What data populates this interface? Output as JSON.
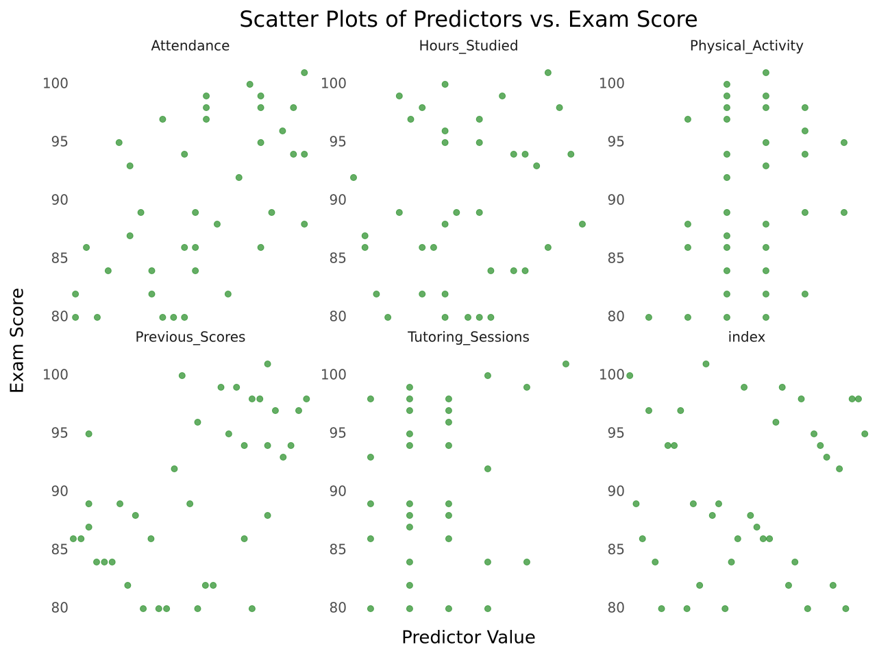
{
  "title": "Scatter Plots of Predictors vs. Exam Score",
  "x_label": "Predictor Value",
  "y_label": "Exam Score",
  "chart_data": [
    {
      "type": "scatter",
      "title": "Attendance",
      "color": "#228b22",
      "x": [
        0,
        0,
        1,
        2,
        3,
        4,
        5,
        5,
        6,
        7,
        7,
        8,
        8,
        9,
        10,
        10,
        10,
        11,
        11,
        11,
        12,
        12,
        12,
        13,
        14,
        15,
        16,
        17,
        17,
        17,
        17,
        18,
        19,
        20,
        20,
        21,
        21,
        21
      ],
      "y": [
        82,
        80,
        86,
        80,
        84,
        95,
        93,
        87,
        89,
        84,
        82,
        97,
        80,
        80,
        94,
        86,
        80,
        89,
        86,
        84,
        99,
        98,
        97,
        88,
        82,
        92,
        100,
        99,
        98,
        95,
        86,
        89,
        96,
        98,
        94,
        101,
        94,
        88
      ],
      "xlim": [
        -0.45,
        21.55
      ],
      "ylim": [
        79,
        102
      ],
      "yticks": [
        80,
        85,
        90,
        95,
        100
      ]
    },
    {
      "type": "scatter",
      "title": "Hours_Studied",
      "color": "#228b22",
      "x": [
        0,
        1,
        1,
        2,
        3,
        4,
        4,
        5,
        6,
        6,
        6,
        7,
        8,
        8,
        8,
        8,
        8,
        8,
        9,
        10,
        11,
        11,
        11,
        11,
        12,
        12,
        13,
        14,
        14,
        15,
        15,
        16,
        17,
        17,
        18,
        19,
        20
      ],
      "y": [
        92,
        87,
        86,
        82,
        80,
        99,
        89,
        97,
        98,
        86,
        82,
        86,
        100,
        96,
        95,
        88,
        82,
        80,
        89,
        80,
        97,
        95,
        89,
        80,
        84,
        80,
        99,
        94,
        84,
        94,
        84,
        93,
        101,
        86,
        98,
        94,
        88
      ],
      "xlim": [
        -0.42,
        20.54
      ],
      "ylim": [
        79,
        102
      ],
      "yticks": [
        80,
        85,
        90,
        95,
        100
      ]
    },
    {
      "type": "scatter",
      "title": "Physical_Activity",
      "color": "#228b22",
      "x": [
        0,
        1,
        1,
        1,
        1,
        2,
        2,
        2,
        2,
        2,
        2,
        2,
        2,
        2,
        2,
        2,
        2,
        3,
        3,
        3,
        3,
        3,
        3,
        3,
        3,
        3,
        3,
        4,
        4,
        4,
        4,
        4,
        5,
        5
      ],
      "y": [
        80,
        97,
        88,
        86,
        80,
        100,
        99,
        98,
        97,
        94,
        92,
        89,
        87,
        86,
        84,
        82,
        80,
        101,
        99,
        98,
        95,
        93,
        88,
        86,
        84,
        82,
        80,
        98,
        96,
        94,
        89,
        82,
        95,
        89
      ],
      "xlim": [
        -0.56,
        5.58
      ],
      "ylim": [
        79,
        102
      ],
      "yticks": [
        80,
        85,
        90,
        95,
        100
      ]
    },
    {
      "type": "scatter",
      "title": "Previous_Scores",
      "color": "#228b22",
      "x": [
        0,
        1,
        2,
        2,
        2,
        3,
        4,
        5,
        6,
        7,
        8,
        9,
        10,
        11,
        12,
        13,
        14,
        15,
        16,
        16,
        17,
        18,
        19,
        20,
        21,
        22,
        22,
        23,
        23,
        24,
        25,
        25,
        25,
        26,
        27,
        28,
        29,
        30
      ],
      "y": [
        86,
        86,
        95,
        89,
        87,
        84,
        84,
        84,
        89,
        82,
        88,
        80,
        86,
        80,
        80,
        92,
        100,
        89,
        96,
        80,
        82,
        82,
        99,
        95,
        99,
        94,
        86,
        98,
        80,
        98,
        101,
        94,
        88,
        97,
        93,
        94,
        97,
        98
      ],
      "xlim": [
        -0.35,
        30.5
      ],
      "ylim": [
        79,
        102
      ],
      "yticks": [
        80,
        85,
        90,
        95,
        100
      ]
    },
    {
      "type": "scatter",
      "title": "Tutoring_Sessions",
      "color": "#228b22",
      "x": [
        0,
        0,
        0,
        0,
        0,
        1,
        1,
        1,
        1,
        1,
        1,
        1,
        1,
        1,
        1,
        1,
        2,
        2,
        2,
        2,
        2,
        2,
        2,
        2,
        3,
        3,
        3,
        3,
        4,
        4,
        5
      ],
      "y": [
        98,
        93,
        89,
        86,
        80,
        99,
        98,
        97,
        95,
        94,
        89,
        88,
        87,
        84,
        82,
        80,
        98,
        97,
        96,
        94,
        89,
        88,
        86,
        80,
        100,
        92,
        84,
        80,
        99,
        84,
        101
      ],
      "xlim": [
        -0.56,
        5.58
      ],
      "ylim": [
        79,
        102
      ],
      "yticks": [
        80,
        85,
        90,
        95,
        100
      ]
    },
    {
      "type": "scatter",
      "title": "index",
      "color": "#228b22",
      "x": [
        0,
        1,
        2,
        3,
        4,
        5,
        6,
        7,
        8,
        9,
        10,
        11,
        12,
        13,
        14,
        15,
        16,
        17,
        18,
        19,
        20,
        21,
        22,
        23,
        24,
        25,
        26,
        27,
        28,
        29,
        30,
        31,
        32,
        33,
        34,
        35,
        36,
        37
      ],
      "y": [
        100,
        89,
        86,
        97,
        84,
        80,
        94,
        94,
        97,
        80,
        89,
        82,
        101,
        88,
        89,
        80,
        84,
        86,
        99,
        88,
        87,
        86,
        86,
        96,
        99,
        82,
        84,
        98,
        80,
        95,
        94,
        93,
        82,
        92,
        80,
        98,
        98,
        95
      ],
      "xlim": [
        -0.45,
        37.3
      ],
      "ylim": [
        79,
        102
      ],
      "yticks": [
        80,
        85,
        90,
        95,
        100
      ]
    }
  ]
}
